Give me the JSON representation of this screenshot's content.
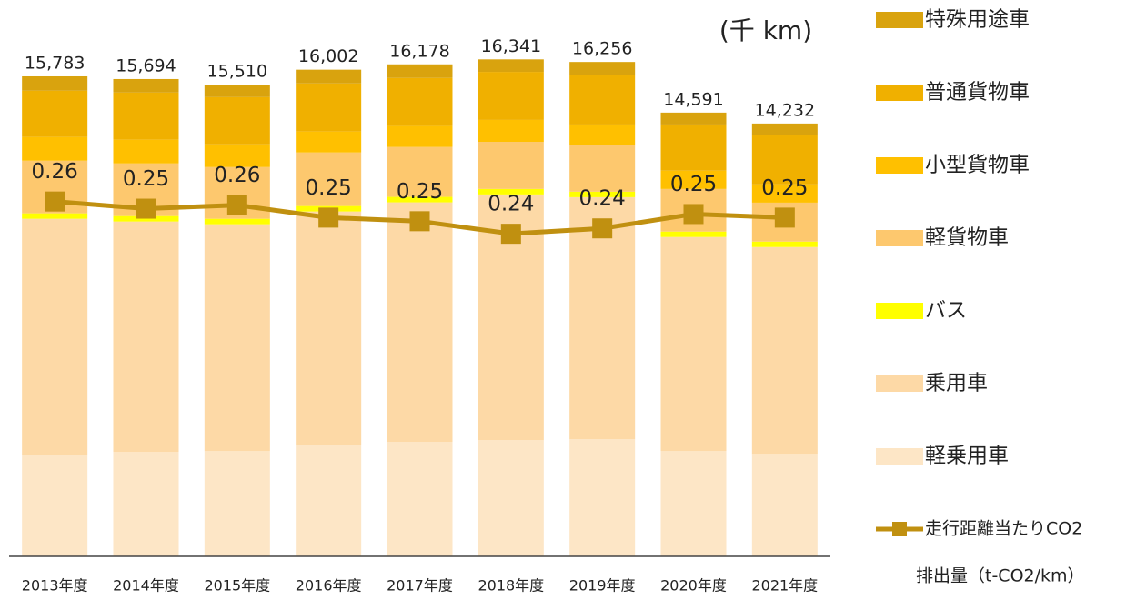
{
  "chart_data": {
    "type": "stacked_bar_line",
    "unit_label": "(千 km)",
    "categories": [
      "2013年度",
      "2014年度",
      "2015年度",
      "2016年度",
      "2017年度",
      "2018年度",
      "2019年度",
      "2020年度",
      "2021年度"
    ],
    "ylim": [
      0,
      16500
    ],
    "y2lim": [
      0.06,
      0.34
    ],
    "series": [
      {
        "name": "軽乗用車",
        "color": "#fde6c6",
        "values": [
          3340,
          3430,
          3460,
          3640,
          3760,
          3820,
          3850,
          3460,
          3370
        ]
      },
      {
        "name": "乗用車",
        "color": "#fdd9a6",
        "values": [
          7760,
          7580,
          7460,
          7700,
          7880,
          8080,
          7960,
          7040,
          6800
        ]
      },
      {
        "name": "バス",
        "color": "#ffff00",
        "values": [
          180,
          180,
          180,
          180,
          180,
          180,
          180,
          180,
          180
        ]
      },
      {
        "name": "軽貨物車",
        "color": "#fdc86e",
        "values": [
          1730,
          1730,
          1700,
          1760,
          1640,
          1550,
          1550,
          1400,
          1280
        ]
      },
      {
        "name": "小型貨物車",
        "color": "#ffc000",
        "values": [
          780,
          780,
          750,
          690,
          690,
          720,
          660,
          600,
          600
        ]
      },
      {
        "name": "普通貨物車",
        "color": "#f0b000",
        "values": [
          1520,
          1550,
          1550,
          1580,
          1580,
          1580,
          1640,
          1520,
          1610
        ]
      },
      {
        "name": "特殊用途車",
        "color": "#d9a30e",
        "values": [
          473,
          444,
          410,
          452,
          448,
          411,
          416,
          391,
          392
        ]
      },
      {
        "name": [
          "走行距離当たりCO2",
          "排出量（t-CO2/km）"
        ],
        "color": "#c09010",
        "axis": "y2",
        "type": "line",
        "values": [
          0.258,
          0.254,
          0.256,
          0.249,
          0.247,
          0.24,
          0.243,
          0.251,
          0.249
        ],
        "value_labels": [
          "0.26",
          "0.25",
          "0.26",
          "0.25",
          "0.25",
          "0.24",
          "0.24",
          "0.25",
          "0.25"
        ]
      }
    ],
    "totals": [
      15783,
      15694,
      15510,
      16002,
      16178,
      16341,
      16256,
      14591,
      14232
    ],
    "total_labels": [
      "15,783",
      "15,694",
      "15,510",
      "16,002",
      "16,178",
      "16,341",
      "16,256",
      "14,591",
      "14,232"
    ]
  }
}
